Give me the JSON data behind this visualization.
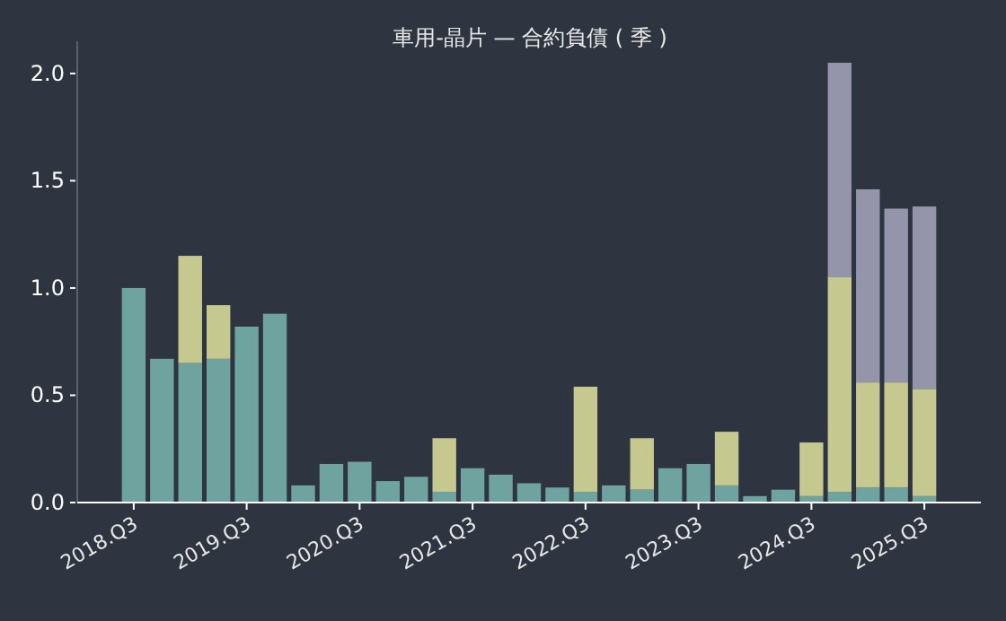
{
  "chart_data": {
    "type": "bar",
    "title": "車用-晶片 — 合約負債 ( 季 )",
    "stacked": true,
    "categories": [
      "2018.Q3",
      null,
      null,
      null,
      "2019.Q3",
      null,
      null,
      null,
      "2020.Q3",
      null,
      null,
      null,
      "2021.Q3",
      null,
      null,
      null,
      "2022.Q3",
      null,
      null,
      null,
      "2023.Q3",
      null,
      null,
      null,
      "2024.Q3",
      null,
      null,
      null,
      "2025.Q3"
    ],
    "series": [
      {
        "color": "#6fa3a0",
        "values": [
          1.0,
          0.67,
          0.65,
          0.67,
          0.82,
          0.88,
          0.08,
          0.18,
          0.19,
          0.1,
          0.12,
          0.05,
          0.16,
          0.13,
          0.09,
          0.07,
          0.05,
          0.08,
          0.06,
          0.16,
          0.18,
          0.08,
          0.03,
          0.06,
          0.03,
          0.05,
          0.07,
          0.07,
          0.03
        ]
      },
      {
        "color": "#c5c98f",
        "values": [
          null,
          null,
          0.5,
          0.25,
          null,
          null,
          null,
          null,
          null,
          null,
          null,
          0.25,
          null,
          null,
          null,
          null,
          0.49,
          null,
          0.24,
          null,
          null,
          0.25,
          null,
          null,
          0.25,
          1.0,
          0.49,
          0.49,
          0.5
        ]
      },
      {
        "color": "#9494ab",
        "values": [
          null,
          null,
          null,
          null,
          null,
          null,
          null,
          null,
          null,
          null,
          null,
          null,
          null,
          null,
          null,
          null,
          null,
          null,
          null,
          null,
          null,
          null,
          null,
          null,
          null,
          1.0,
          0.9,
          0.81,
          0.85
        ]
      }
    ],
    "ylim": [
      0,
      2.15
    ],
    "yticks": [
      {
        "value": 0,
        "label": "0.0"
      },
      {
        "value": 0.5,
        "label": "0.5"
      },
      {
        "value": 1,
        "label": "1.0"
      },
      {
        "value": 1.5,
        "label": "1.5"
      },
      {
        "value": 2,
        "label": "2.0"
      }
    ],
    "grid": false
  }
}
